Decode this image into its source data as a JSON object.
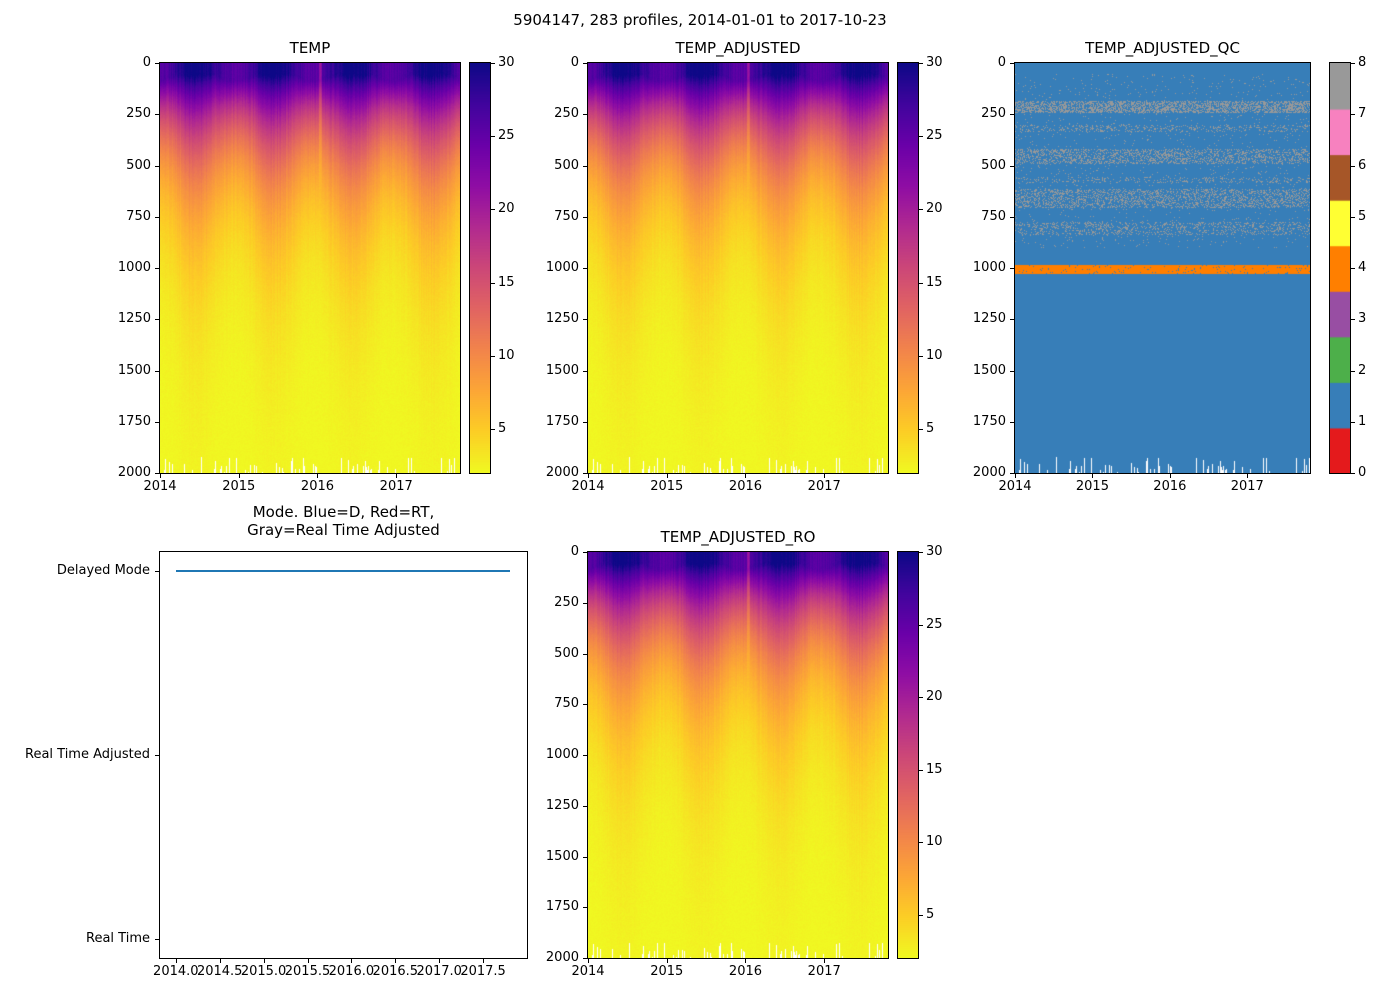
{
  "figure_title": "5904147, 283 profiles, 2014-01-01 to 2017-10-23",
  "palette": {
    "plasma": [
      "#0d0887",
      "#41049d",
      "#6a00a8",
      "#8f0da4",
      "#b12a90",
      "#cc4778",
      "#e16462",
      "#f2844b",
      "#fca636",
      "#fcce25",
      "#f0f921"
    ],
    "qc_flag_colors": [
      "#e41a1c",
      "#377eb8",
      "#4daf4a",
      "#984ea3",
      "#ff7f00",
      "#ffff33",
      "#a65628",
      "#f781bf",
      "#999999"
    ],
    "mode_line": "#1f77b4",
    "axes_edge": "#000000",
    "background": "#ffffff"
  },
  "chart_data": [
    {
      "id": "temp",
      "type": "heatmap",
      "title": "TEMP",
      "x": {
        "range": [
          2014.0,
          2017.81
        ],
        "ticks": [
          2014,
          2015,
          2016,
          2017
        ],
        "tick_labels": [
          "2014",
          "2015",
          "2016",
          "2017"
        ]
      },
      "y": {
        "range": [
          0,
          2000
        ],
        "ticks": [
          0,
          250,
          500,
          750,
          1000,
          1250,
          1500,
          1750,
          2000
        ],
        "tick_labels": [
          "0",
          "250",
          "500",
          "750",
          "1000",
          "1250",
          "1500",
          "1750",
          "2000"
        ]
      },
      "colorbar": {
        "vmin": 2,
        "vmax": 30,
        "ticks": [
          30,
          25,
          20,
          15,
          10,
          5
        ],
        "tick_labels": [
          "30",
          "25",
          "20",
          "15",
          "10",
          "5"
        ],
        "colormap": "plasma_r"
      },
      "model": {
        "surface_temp_mean": 28,
        "surface_temp_amp": 2.5,
        "deep_temp": 2.0,
        "thermocline_scale": 380,
        "mixed_layer": 50,
        "cold_streak_year": 2016.04,
        "cold_streak_amp": 5,
        "max_depth_gap_probability": 0.22
      }
    },
    {
      "id": "temp_adjusted",
      "type": "heatmap",
      "title": "TEMP_ADJUSTED",
      "x": {
        "range": [
          2014.0,
          2017.81
        ],
        "ticks": [
          2014,
          2015,
          2016,
          2017
        ],
        "tick_labels": [
          "2014",
          "2015",
          "2016",
          "2017"
        ]
      },
      "y": {
        "range": [
          0,
          2000
        ],
        "ticks": [
          0,
          250,
          500,
          750,
          1000,
          1250,
          1500,
          1750,
          2000
        ],
        "tick_labels": [
          "0",
          "250",
          "500",
          "750",
          "1000",
          "1250",
          "1500",
          "1750",
          "2000"
        ]
      },
      "colorbar": {
        "vmin": 2,
        "vmax": 30,
        "ticks": [
          30,
          25,
          20,
          15,
          10,
          5
        ],
        "tick_labels": [
          "30",
          "25",
          "20",
          "15",
          "10",
          "5"
        ],
        "colormap": "plasma_r"
      },
      "model": {
        "surface_temp_mean": 28,
        "surface_temp_amp": 2.5,
        "deep_temp": 2.0,
        "thermocline_scale": 380,
        "mixed_layer": 50,
        "cold_streak_year": 2016.04,
        "cold_streak_amp": 5,
        "max_depth_gap_probability": 0.22
      }
    },
    {
      "id": "temp_adjusted_qc",
      "type": "qc_heatmap",
      "title": "TEMP_ADJUSTED_QC",
      "x": {
        "range": [
          2014.0,
          2017.81
        ],
        "ticks": [
          2014,
          2015,
          2016,
          2017
        ],
        "tick_labels": [
          "2014",
          "2015",
          "2016",
          "2017"
        ]
      },
      "y": {
        "range": [
          0,
          2000
        ],
        "ticks": [
          0,
          250,
          500,
          750,
          1000,
          1250,
          1500,
          1750,
          2000
        ],
        "tick_labels": [
          "0",
          "250",
          "500",
          "750",
          "1000",
          "1250",
          "1500",
          "1750",
          "2000"
        ]
      },
      "colorbar": {
        "ticks": [
          0,
          1,
          2,
          3,
          4,
          5,
          6,
          7,
          8
        ],
        "tick_labels": [
          "0",
          "1",
          "2",
          "3",
          "4",
          "5",
          "6",
          "7",
          "8"
        ],
        "n_colors": 9
      },
      "flags": {
        "base": 1,
        "scatter": {
          "depth_range": [
            50,
            900
          ],
          "p": 0.025,
          "flag": 8
        },
        "bands": [
          {
            "range": [
              185,
              240
            ],
            "p": 0.5,
            "flag": 8
          },
          {
            "range": [
              300,
              335
            ],
            "p": 0.18,
            "flag": 8
          },
          {
            "range": [
              420,
              490
            ],
            "p": 0.32,
            "flag": 8
          },
          {
            "range": [
              555,
              585
            ],
            "p": 0.15,
            "flag": 8
          },
          {
            "range": [
              615,
              705
            ],
            "p": 0.3,
            "flag": 8
          },
          {
            "range": [
              775,
              840
            ],
            "p": 0.22,
            "flag": 8
          }
        ],
        "orange_band": {
          "range": [
            985,
            1030
          ],
          "p": 0.95,
          "flag": 4
        }
      }
    },
    {
      "id": "mode",
      "type": "mode_line",
      "title": "Mode. Blue=D, Red=RT,\nGray=Real Time Adjusted",
      "x": {
        "range": [
          2013.82,
          2018.0
        ],
        "ticks": [
          2014.0,
          2014.5,
          2015.0,
          2015.5,
          2016.0,
          2016.5,
          2017.0,
          2017.5
        ],
        "tick_labels": [
          "2014.0",
          "2014.5",
          "2015.0",
          "2015.5",
          "2016.0",
          "2016.5",
          "2017.0",
          "2017.5"
        ]
      },
      "y": {
        "range": [
          -0.105,
          2.105
        ],
        "categories": [
          "Delayed Mode",
          "Real Time Adjusted",
          "Real Time"
        ],
        "values": [
          2,
          1,
          0
        ]
      },
      "line": {
        "category": "Delayed Mode",
        "value": 2,
        "x_start": 2014.0,
        "x_end": 2017.81
      }
    },
    {
      "id": "temp_adjusted_ro",
      "type": "heatmap",
      "title": "TEMP_ADJUSTED_RO",
      "x": {
        "range": [
          2014.0,
          2017.81
        ],
        "ticks": [
          2014,
          2015,
          2016,
          2017
        ],
        "tick_labels": [
          "2014",
          "2015",
          "2016",
          "2017"
        ]
      },
      "y": {
        "range": [
          0,
          2000
        ],
        "ticks": [
          0,
          250,
          500,
          750,
          1000,
          1250,
          1500,
          1750,
          2000
        ],
        "tick_labels": [
          "0",
          "250",
          "500",
          "750",
          "1000",
          "1250",
          "1500",
          "1750",
          "2000"
        ]
      },
      "colorbar": {
        "vmin": 2,
        "vmax": 30,
        "ticks": [
          30,
          25,
          20,
          15,
          10,
          5
        ],
        "tick_labels": [
          "30",
          "25",
          "20",
          "15",
          "10",
          "5"
        ],
        "colormap": "plasma_r"
      },
      "model": {
        "surface_temp_mean": 28,
        "surface_temp_amp": 2.5,
        "deep_temp": 2.0,
        "thermocline_scale": 380,
        "mixed_layer": 50,
        "cold_streak_year": 2016.04,
        "cold_streak_amp": 5,
        "max_depth_gap_probability": 0.22
      }
    }
  ]
}
